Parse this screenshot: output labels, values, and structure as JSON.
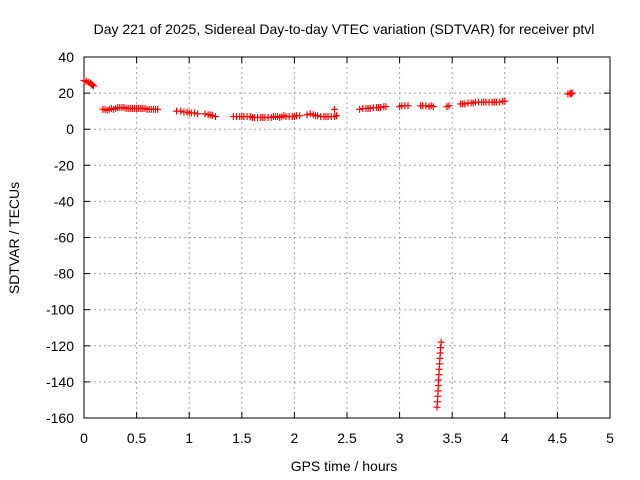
{
  "chart_data": {
    "type": "scatter",
    "title": "Day 221 of 2025, Sidereal Day-to-day VTEC variation (SDTVAR) for receiver ptvl",
    "xlabel": "GPS time / hours",
    "ylabel": "SDTVAR / TECUs",
    "xlim": [
      0,
      5
    ],
    "ylim": [
      -160,
      40
    ],
    "xticks": [
      0,
      0.5,
      1,
      1.5,
      2,
      2.5,
      3,
      3.5,
      4,
      4.5,
      5
    ],
    "yticks": [
      40,
      20,
      0,
      -20,
      -40,
      -60,
      -80,
      -100,
      -120,
      -140,
      -160
    ],
    "xtick_labels": [
      "0",
      "0.5",
      "1",
      "1.5",
      "2",
      "2.5",
      "3",
      "3.5",
      "4",
      "4.5",
      "5"
    ],
    "ytick_labels": [
      "40",
      "20",
      "0",
      "-20",
      "-40",
      "-60",
      "-80",
      "-100",
      "-120",
      "-140",
      "-160"
    ],
    "grid": true,
    "marker": "plus",
    "color": "#ff0000",
    "series": [
      {
        "points": [
          [
            0.0,
            27
          ],
          [
            0.02,
            26.5
          ],
          [
            0.04,
            26
          ],
          [
            0.06,
            25.5
          ],
          [
            0.07,
            25
          ],
          [
            0.08,
            24.5
          ],
          [
            0.09,
            24
          ],
          [
            0.18,
            11
          ],
          [
            0.2,
            11
          ],
          [
            0.22,
            10.5
          ],
          [
            0.24,
            11
          ],
          [
            0.26,
            11.5
          ],
          [
            0.28,
            11
          ],
          [
            0.3,
            11.5
          ],
          [
            0.32,
            12
          ],
          [
            0.34,
            12
          ],
          [
            0.36,
            12
          ],
          [
            0.38,
            12
          ],
          [
            0.4,
            11.5
          ],
          [
            0.42,
            11.5
          ],
          [
            0.44,
            11.5
          ],
          [
            0.46,
            11.5
          ],
          [
            0.48,
            11.5
          ],
          [
            0.5,
            11.5
          ],
          [
            0.52,
            11.5
          ],
          [
            0.54,
            11.5
          ],
          [
            0.56,
            11.5
          ],
          [
            0.58,
            11.5
          ],
          [
            0.6,
            11
          ],
          [
            0.62,
            11
          ],
          [
            0.64,
            11
          ],
          [
            0.66,
            11
          ],
          [
            0.68,
            11
          ],
          [
            0.7,
            11
          ],
          [
            0.88,
            10
          ],
          [
            0.92,
            10
          ],
          [
            0.95,
            9.5
          ],
          [
            0.98,
            9.5
          ],
          [
            1.0,
            9
          ],
          [
            1.02,
            9
          ],
          [
            1.05,
            9
          ],
          [
            1.08,
            8.5
          ],
          [
            1.15,
            8.5
          ],
          [
            1.18,
            8
          ],
          [
            1.2,
            8
          ],
          [
            1.22,
            7.5
          ],
          [
            1.25,
            7
          ],
          [
            1.42,
            7
          ],
          [
            1.45,
            7
          ],
          [
            1.48,
            7
          ],
          [
            1.5,
            7
          ],
          [
            1.52,
            7
          ],
          [
            1.55,
            7
          ],
          [
            1.58,
            7
          ],
          [
            1.6,
            6.5
          ],
          [
            1.62,
            6.5
          ],
          [
            1.65,
            6.5
          ],
          [
            1.68,
            6.5
          ],
          [
            1.7,
            6.5
          ],
          [
            1.72,
            6.5
          ],
          [
            1.75,
            6.5
          ],
          [
            1.78,
            6.5
          ],
          [
            1.8,
            7
          ],
          [
            1.82,
            7
          ],
          [
            1.84,
            7
          ],
          [
            1.86,
            6.5
          ],
          [
            1.88,
            7
          ],
          [
            1.9,
            7.5
          ],
          [
            1.92,
            7
          ],
          [
            1.95,
            7
          ],
          [
            1.98,
            7
          ],
          [
            2.0,
            7
          ],
          [
            2.02,
            7.5
          ],
          [
            2.05,
            7.5
          ],
          [
            2.12,
            8
          ],
          [
            2.15,
            8.5
          ],
          [
            2.18,
            8
          ],
          [
            2.2,
            7.5
          ],
          [
            2.22,
            7.5
          ],
          [
            2.25,
            7
          ],
          [
            2.28,
            7
          ],
          [
            2.3,
            7
          ],
          [
            2.32,
            7
          ],
          [
            2.35,
            7
          ],
          [
            2.38,
            7
          ],
          [
            2.4,
            7.5
          ],
          [
            2.38,
            11
          ],
          [
            2.62,
            11
          ],
          [
            2.65,
            11.5
          ],
          [
            2.68,
            11.5
          ],
          [
            2.7,
            11.5
          ],
          [
            2.72,
            11.5
          ],
          [
            2.75,
            12
          ],
          [
            2.78,
            12
          ],
          [
            2.8,
            12
          ],
          [
            2.82,
            12
          ],
          [
            2.85,
            12.5
          ],
          [
            2.87,
            12.5
          ],
          [
            3.0,
            12.5
          ],
          [
            3.02,
            13
          ],
          [
            3.05,
            13
          ],
          [
            3.08,
            13
          ],
          [
            3.2,
            13
          ],
          [
            3.22,
            13
          ],
          [
            3.25,
            13
          ],
          [
            3.28,
            12.5
          ],
          [
            3.3,
            13
          ],
          [
            3.32,
            12.5
          ],
          [
            3.45,
            12.5
          ],
          [
            3.47,
            13
          ],
          [
            3.58,
            14
          ],
          [
            3.6,
            14
          ],
          [
            3.62,
            14
          ],
          [
            3.65,
            14.5
          ],
          [
            3.68,
            14.5
          ],
          [
            3.7,
            14.5
          ],
          [
            3.72,
            15
          ],
          [
            3.75,
            15
          ],
          [
            3.78,
            15
          ],
          [
            3.8,
            15
          ],
          [
            3.82,
            15
          ],
          [
            3.85,
            15
          ],
          [
            3.88,
            15
          ],
          [
            3.9,
            15
          ],
          [
            3.92,
            15
          ],
          [
            3.95,
            15
          ],
          [
            3.98,
            15.5
          ],
          [
            4.0,
            15.5
          ],
          [
            4.6,
            19.5
          ],
          [
            4.62,
            20
          ],
          [
            4.63,
            19.5
          ],
          [
            4.64,
            20
          ],
          [
            3.355,
            -154
          ],
          [
            3.36,
            -151
          ],
          [
            3.362,
            -148
          ],
          [
            3.365,
            -145
          ],
          [
            3.368,
            -142
          ],
          [
            3.37,
            -139
          ],
          [
            3.373,
            -136
          ],
          [
            3.376,
            -133
          ],
          [
            3.38,
            -130
          ],
          [
            3.383,
            -127
          ],
          [
            3.387,
            -124
          ],
          [
            3.39,
            -121
          ],
          [
            3.395,
            -118
          ]
        ]
      }
    ]
  }
}
